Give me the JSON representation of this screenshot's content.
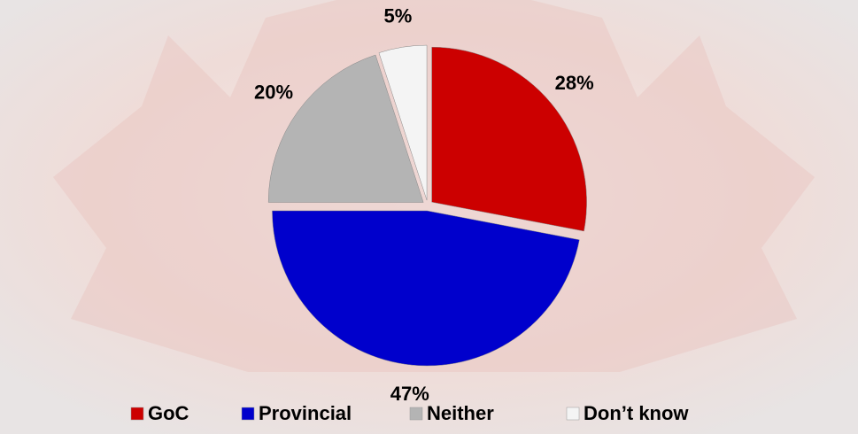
{
  "chart_data": {
    "type": "pie",
    "categories": [
      "GoC",
      "Provincial",
      "Neither",
      "Don’t know"
    ],
    "values": [
      28,
      47,
      20,
      5
    ],
    "value_labels": [
      "28%",
      "47%",
      "20%",
      "5%"
    ],
    "colors": [
      "#cc0000",
      "#0000cc",
      "#b4b4b4",
      "#f4f4f4"
    ],
    "legend": "bottom"
  }
}
